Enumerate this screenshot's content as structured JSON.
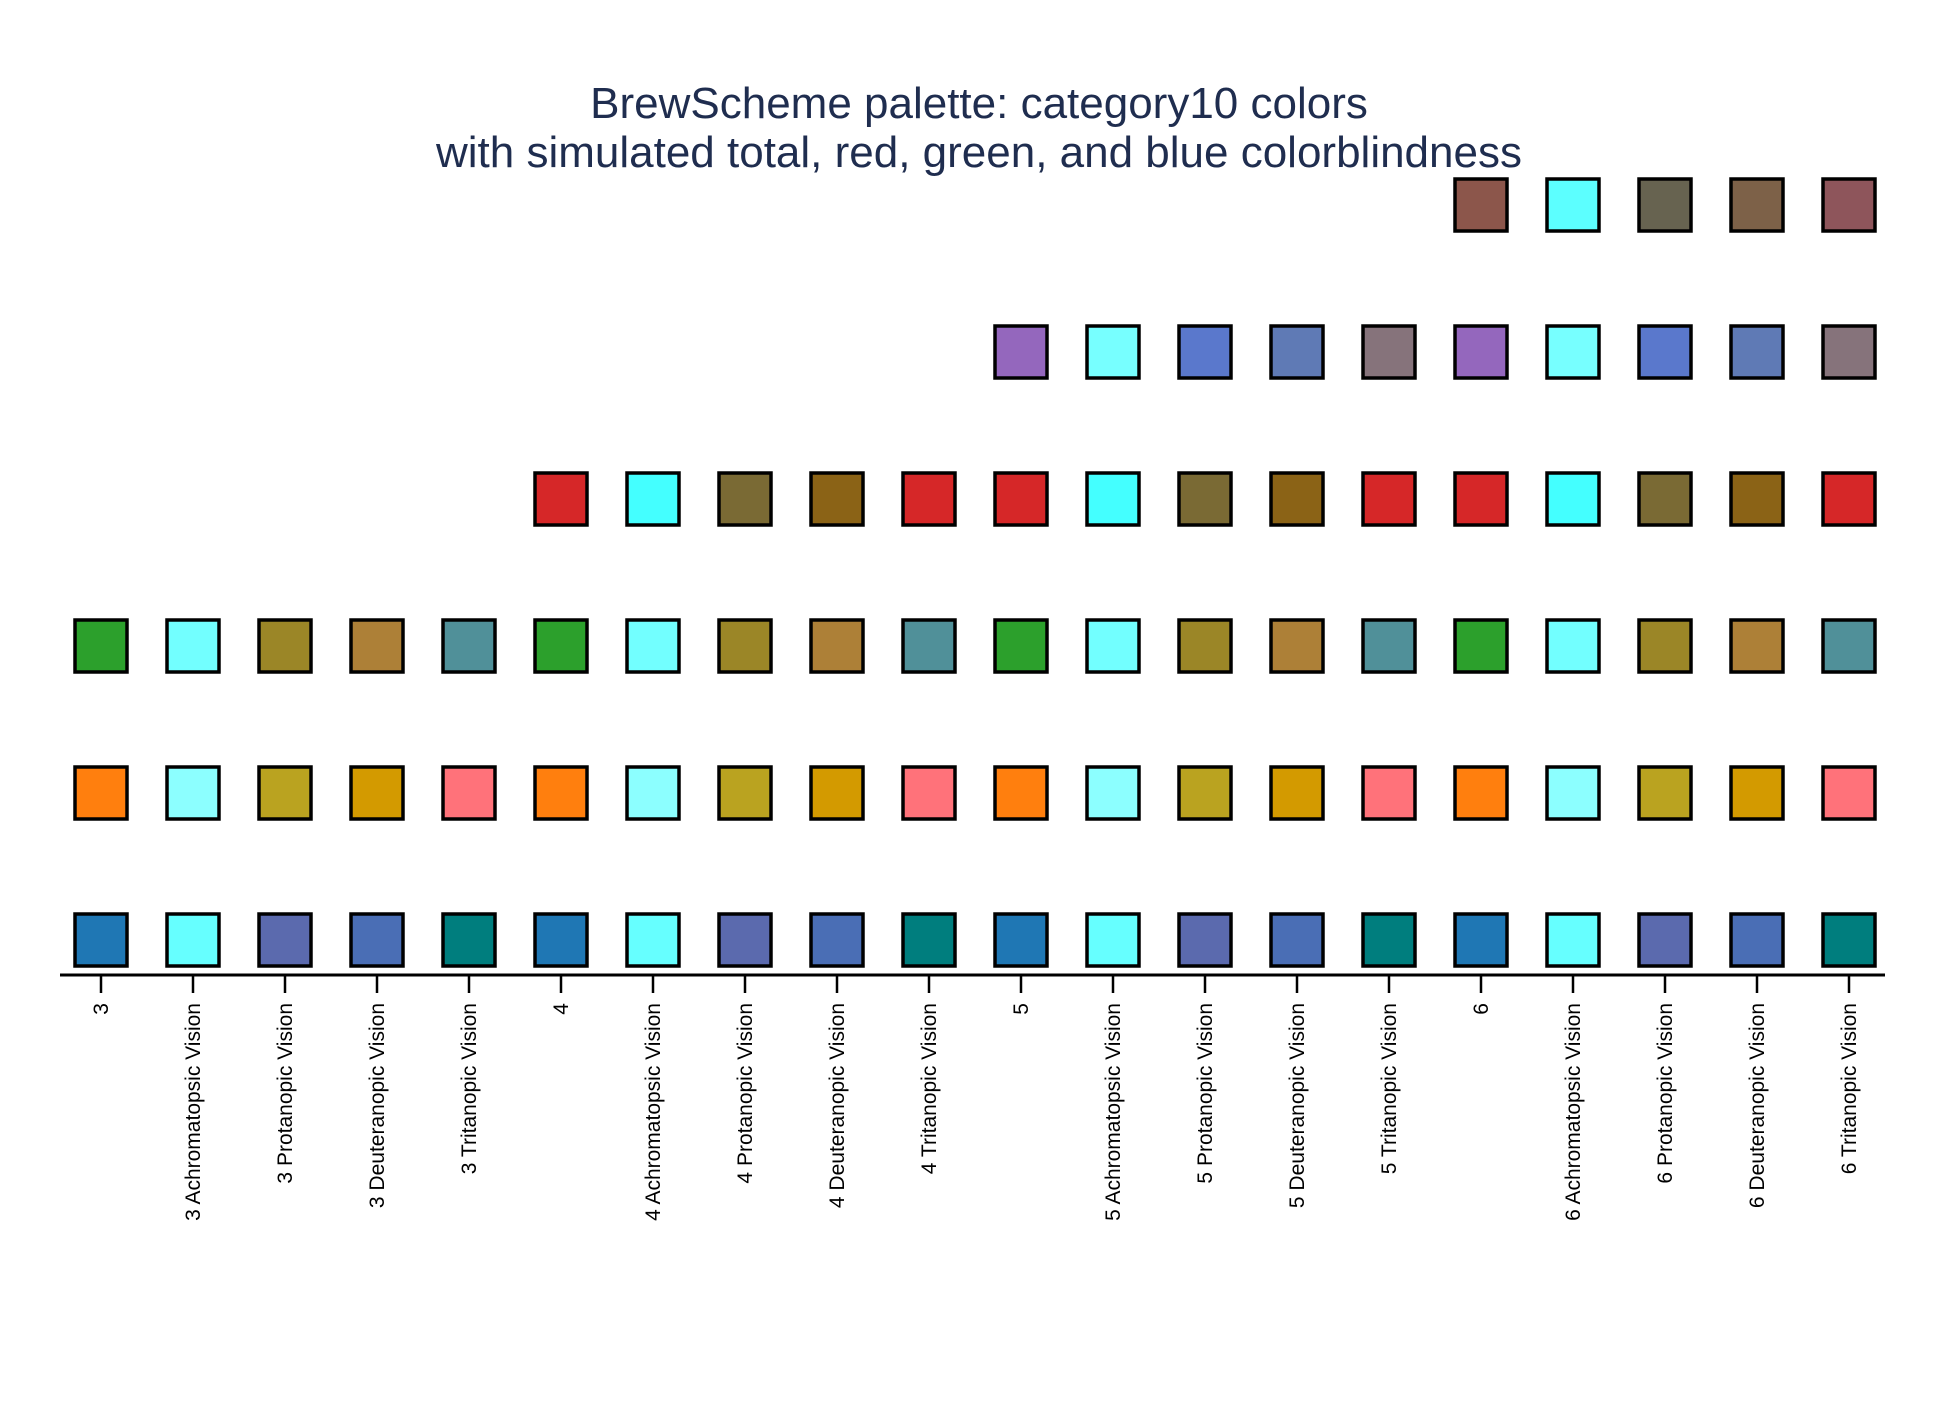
{
  "chart_data": {
    "type": "scatter",
    "title": "BrewScheme palette: category10 colors",
    "subtitle": "with simulated total, red, green, and blue colorblindness",
    "xlabel": "",
    "ylabel": "",
    "grid": false,
    "legend": "none",
    "categories": [
      "3",
      "3 Achromatopsic Vision",
      "3 Protanopic Vision",
      "3 Deuteranopic Vision",
      "3 Tritanopic Vision",
      "4",
      "4 Achromatopsic Vision",
      "4 Protanopic Vision",
      "4 Deuteranopic Vision",
      "4 Tritanopic Vision",
      "5",
      "5 Achromatopsic Vision",
      "5 Protanopic Vision",
      "5 Deuteranopic Vision",
      "5 Tritanopic Vision",
      "6",
      "6 Achromatopsic Vision",
      "6 Protanopic Vision",
      "6 Deuteranopic Vision",
      "6 Tritanopic Vision"
    ],
    "colors": [
      [
        "#1f77b4",
        "#ff7f0e",
        "#2ca02c"
      ],
      [
        "#66ffff",
        "#8cffff",
        "#72ffff"
      ],
      [
        "#5b6aae",
        "#baa320",
        "#9b8627"
      ],
      [
        "#4a6eb5",
        "#d39a00",
        "#ad8037"
      ],
      [
        "#007e7e",
        "#ff727a",
        "#509099"
      ],
      [
        "#1f77b4",
        "#ff7f0e",
        "#2ca02c",
        "#d62728"
      ],
      [
        "#66ffff",
        "#8cffff",
        "#72ffff",
        "#44ffff"
      ],
      [
        "#5b6aae",
        "#baa320",
        "#9b8627",
        "#7a6a34"
      ],
      [
        "#4a6eb5",
        "#d39a00",
        "#ad8037",
        "#8b6316"
      ],
      [
        "#007e7e",
        "#ff727a",
        "#509099",
        "#d62728"
      ],
      [
        "#1f77b4",
        "#ff7f0e",
        "#2ca02c",
        "#d62728",
        "#9467bd"
      ],
      [
        "#66ffff",
        "#8cffff",
        "#72ffff",
        "#44ffff",
        "#77ffff"
      ],
      [
        "#5b6aae",
        "#baa320",
        "#9b8627",
        "#7a6a34",
        "#5a78cc"
      ],
      [
        "#4a6eb5",
        "#d39a00",
        "#ad8037",
        "#8b6316",
        "#5f7ab5"
      ],
      [
        "#007e7e",
        "#ff727a",
        "#509099",
        "#d62728",
        "#86737b"
      ],
      [
        "#1f77b4",
        "#ff7f0e",
        "#2ca02c",
        "#d62728",
        "#9467bd",
        "#8c564b"
      ],
      [
        "#66ffff",
        "#8cffff",
        "#72ffff",
        "#44ffff",
        "#77ffff",
        "#5cffff"
      ],
      [
        "#5b6aae",
        "#baa320",
        "#9b8627",
        "#7a6a34",
        "#5a78cc",
        "#676350"
      ],
      [
        "#4a6eb5",
        "#d39a00",
        "#ad8037",
        "#8b6316",
        "#5f7ab5",
        "#7d6148"
      ],
      [
        "#007e7e",
        "#ff727a",
        "#509099",
        "#d62728",
        "#86737b",
        "#8e555b"
      ]
    ],
    "marker": {
      "shape": "square",
      "outline": "#000000"
    }
  }
}
